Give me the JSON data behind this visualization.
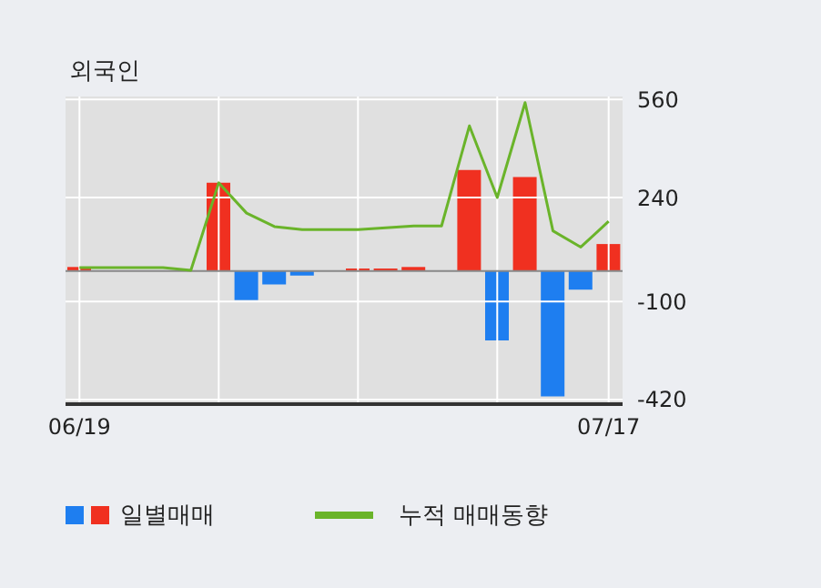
{
  "chart_data": {
    "type": "bar",
    "title": "외국인",
    "categories": [
      "06/19",
      null,
      null,
      null,
      null,
      null,
      null,
      null,
      null,
      null,
      null,
      null,
      null,
      null,
      null,
      null,
      null,
      null,
      null,
      "07/17"
    ],
    "series": [
      {
        "name": "일별매매",
        "colors": [
          "#f03020",
          "#f03020",
          "#f03020",
          "#f03020",
          "#f03020",
          "#f03020",
          "#1e7ef0",
          "#1e7ef0",
          "#1e7ef0",
          "#f03020",
          "#f03020",
          "#f03020",
          "#f03020",
          "#f03020",
          "#f03020",
          "#1e7ef0",
          "#f03020",
          "#1e7ef0",
          "#1e7ef0",
          "#f03020"
        ],
        "values": [
          13,
          0,
          0,
          0,
          0,
          288,
          -95,
          -44,
          -15,
          0,
          8,
          8,
          13,
          0,
          330,
          -227,
          307,
          -410,
          -61,
          88
        ]
      },
      {
        "name": "누적 매매동향",
        "type": "line",
        "color": "#6ab42a",
        "values": [
          11,
          11,
          11,
          11,
          2,
          288,
          189,
          145,
          135,
          135,
          135,
          141,
          147,
          147,
          474,
          240,
          550,
          131,
          78,
          162
        ]
      }
    ],
    "ylim": [
      -435,
      570
    ],
    "yticks": [
      560,
      240,
      -100,
      -420
    ],
    "grid": true,
    "legend": "bottom left",
    "marker": "none",
    "ref_lines": [
      {
        "axis": "y",
        "value": 0,
        "color": "#888888"
      }
    ]
  }
}
